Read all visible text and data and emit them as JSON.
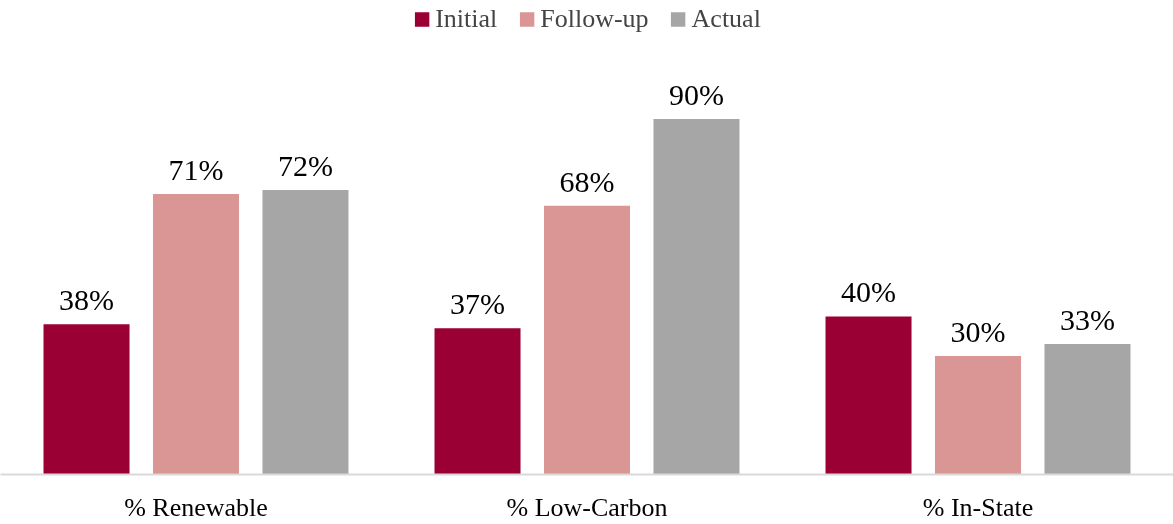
{
  "chart_data": {
    "type": "bar",
    "categories": [
      "% Renewable",
      "% Low-Carbon",
      "% In-State"
    ],
    "series": [
      {
        "name": "Initial",
        "color": "#9b0034",
        "values": [
          38,
          37,
          40
        ],
        "value_labels": [
          "38%",
          "37%",
          "40%"
        ]
      },
      {
        "name": "Follow-up",
        "color": "#d99694",
        "values": [
          71,
          68,
          30
        ],
        "value_labels": [
          "71%",
          "68%",
          "30%"
        ]
      },
      {
        "name": "Actual",
        "color": "#a6a6a6",
        "values": [
          72,
          90,
          33
        ],
        "value_labels": [
          "72%",
          "90%",
          "33%"
        ]
      }
    ],
    "grid": false,
    "legend": "top"
  }
}
